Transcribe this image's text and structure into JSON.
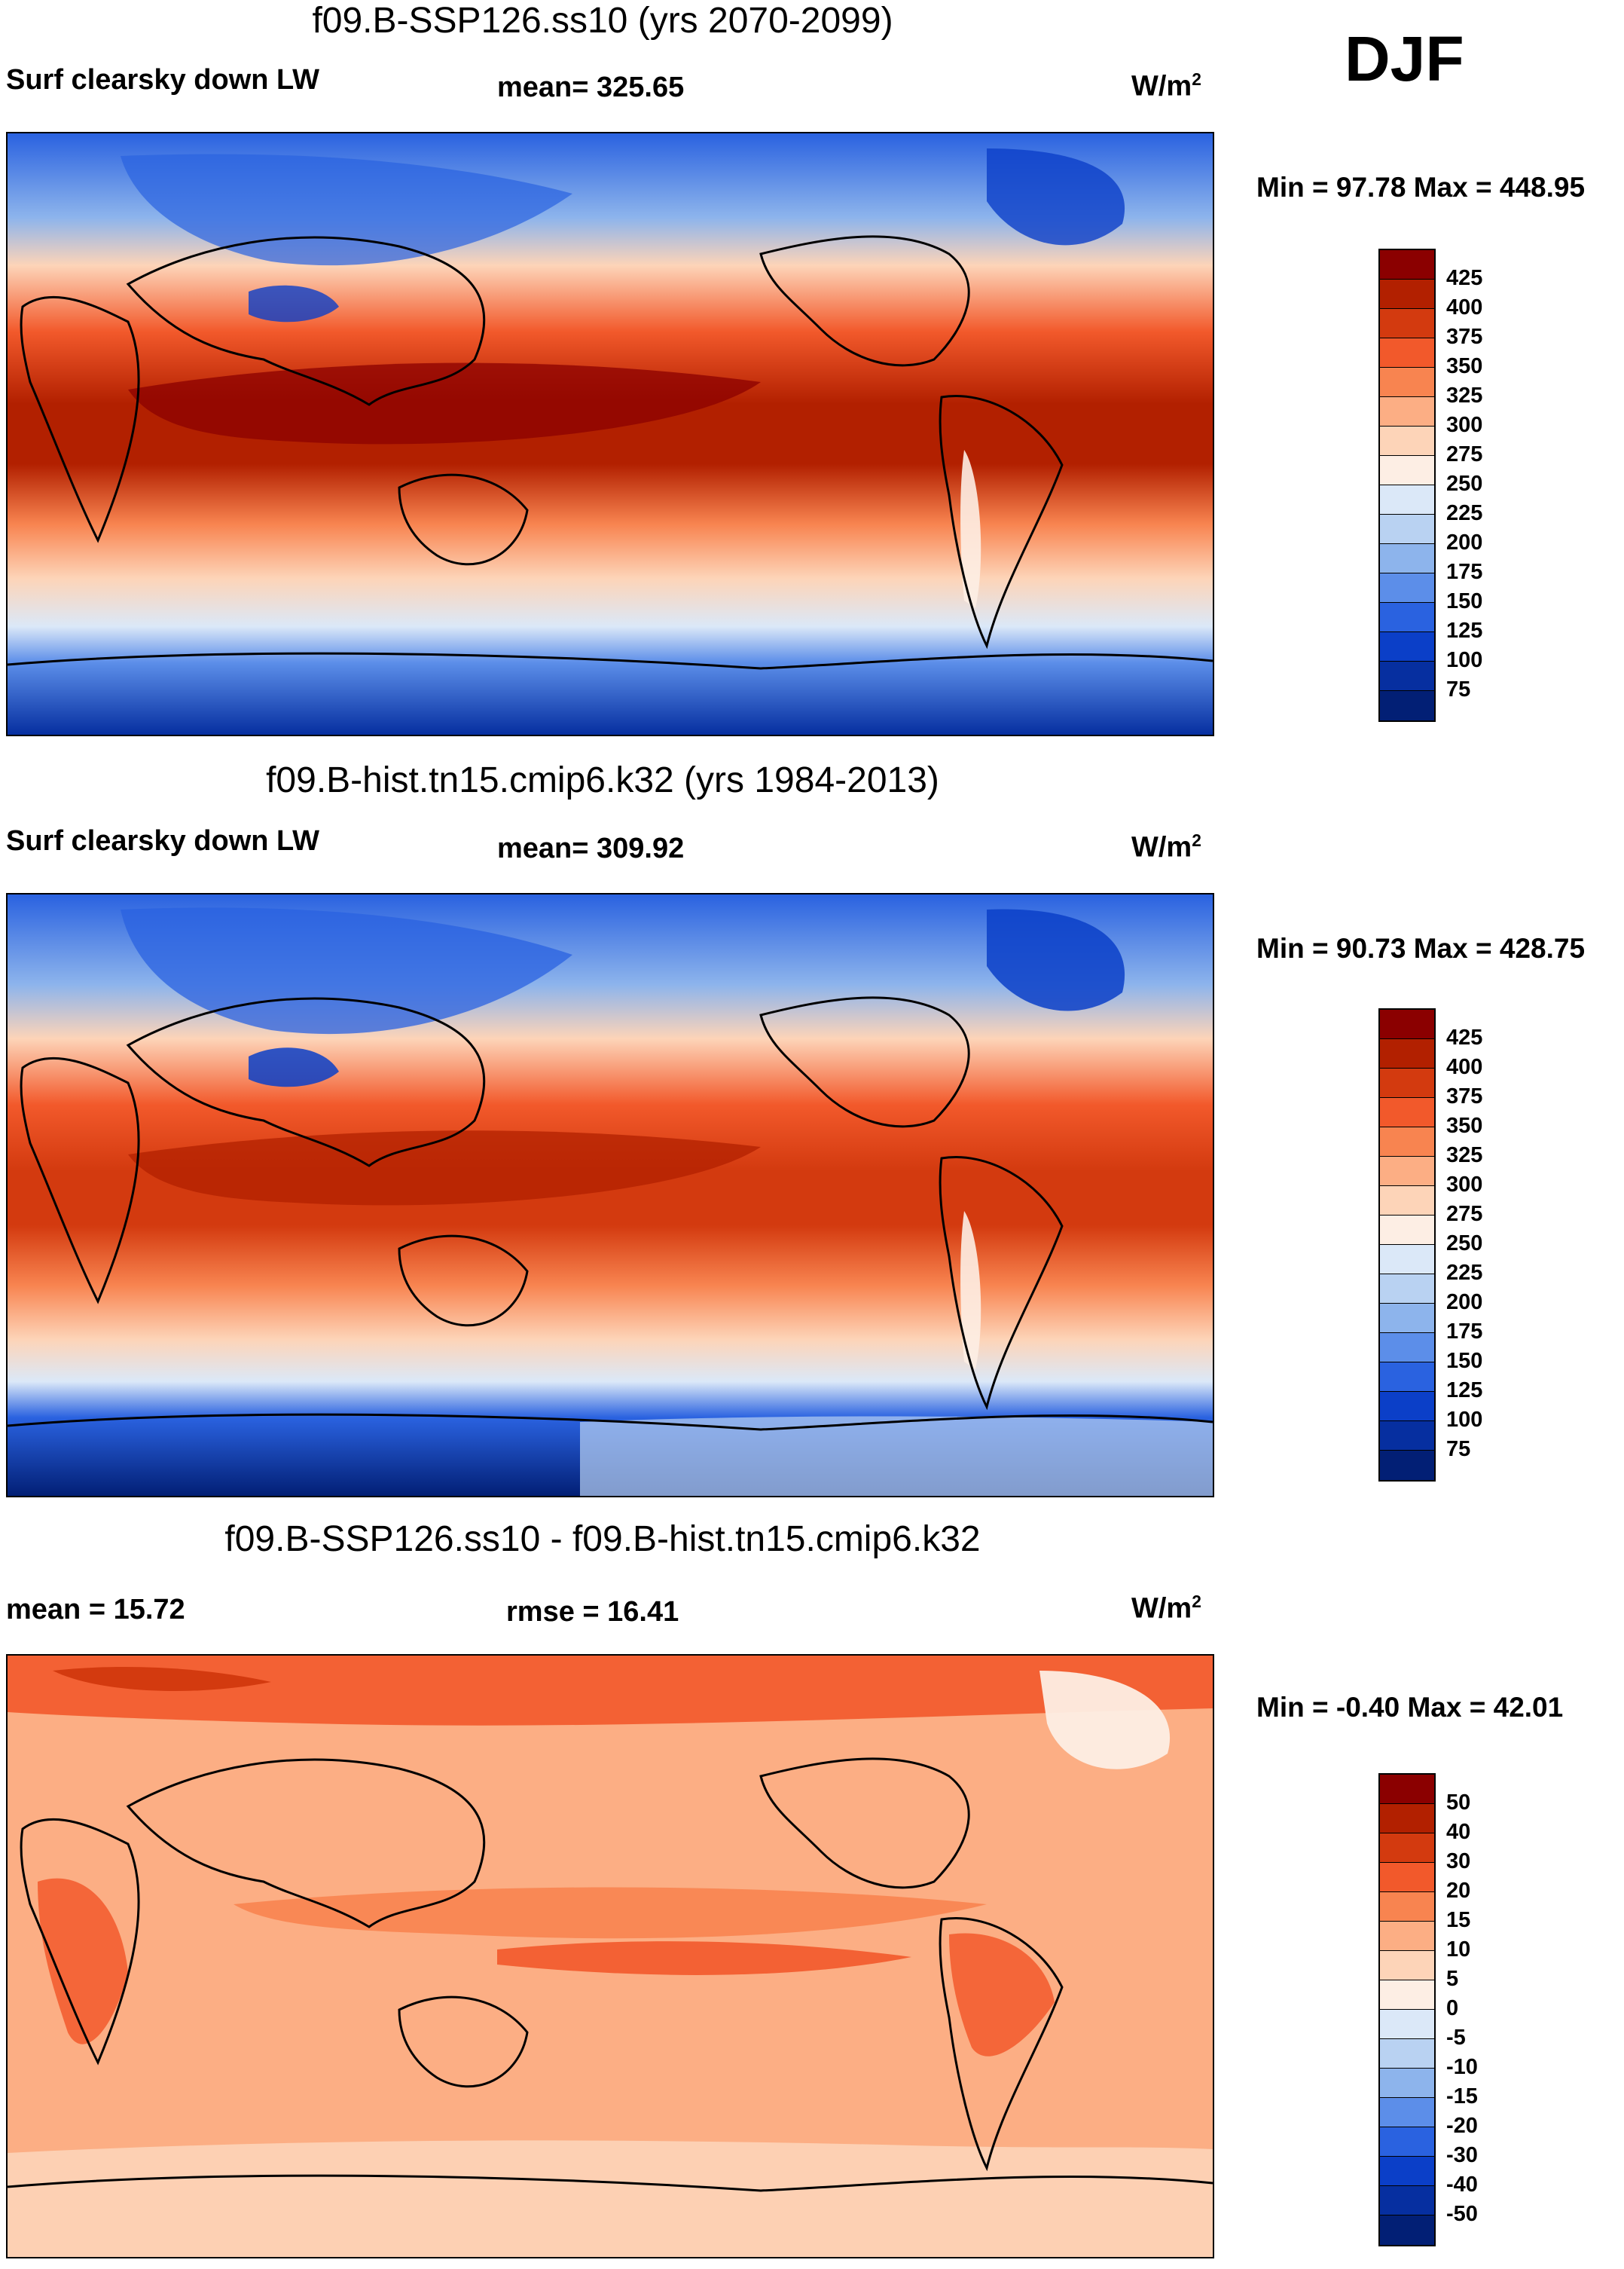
{
  "season": "DJF",
  "units": "W/m",
  "units_sup": "2",
  "panels": [
    {
      "title": "f09.B-SSP126.ss10 (yrs 2070-2099)",
      "left_label": "Surf clearsky down LW",
      "center_label": "mean= 325.65",
      "minmax": "Min =  97.78 Max = 448.95"
    },
    {
      "title": "f09.B-hist.tn15.cmip6.k32 (yrs 1984-2013)",
      "left_label": "Surf clearsky down LW",
      "center_label": "mean= 309.92",
      "minmax": "Min =  90.73 Max = 428.75"
    },
    {
      "title": "f09.B-SSP126.ss10 - f09.B-hist.tn15.cmip6.k32",
      "left_label": "mean =  15.72",
      "center_label": "rmse =  16.41",
      "minmax": "Min =  -0.40 Max =  42.01"
    }
  ],
  "colorbar_abs": {
    "ticks": [
      "425",
      "400",
      "375",
      "350",
      "325",
      "300",
      "275",
      "250",
      "225",
      "200",
      "175",
      "150",
      "125",
      "100",
      "75"
    ],
    "colors": [
      "#8b0000",
      "#b22000",
      "#d33a0f",
      "#f2592b",
      "#f88450",
      "#fcae84",
      "#fdd4b8",
      "#fdeee4",
      "#dbe8f8",
      "#b9d2f2",
      "#8db4ec",
      "#5c8ee9",
      "#2a62e0",
      "#0b3fc8",
      "#062fa0",
      "#021f75"
    ]
  },
  "colorbar_diff": {
    "ticks": [
      "50",
      "40",
      "30",
      "20",
      "15",
      "10",
      "5",
      "0",
      "-5",
      "-10",
      "-15",
      "-20",
      "-30",
      "-40",
      "-50"
    ],
    "colors": [
      "#8b0000",
      "#b22000",
      "#d33a0f",
      "#f2592b",
      "#f88450",
      "#fcae84",
      "#fdd4b8",
      "#fdeee4",
      "#dbe8f8",
      "#b9d2f2",
      "#8db4ec",
      "#5c8ee9",
      "#2a62e0",
      "#0b3fc8",
      "#062fa0",
      "#021f75"
    ]
  }
}
